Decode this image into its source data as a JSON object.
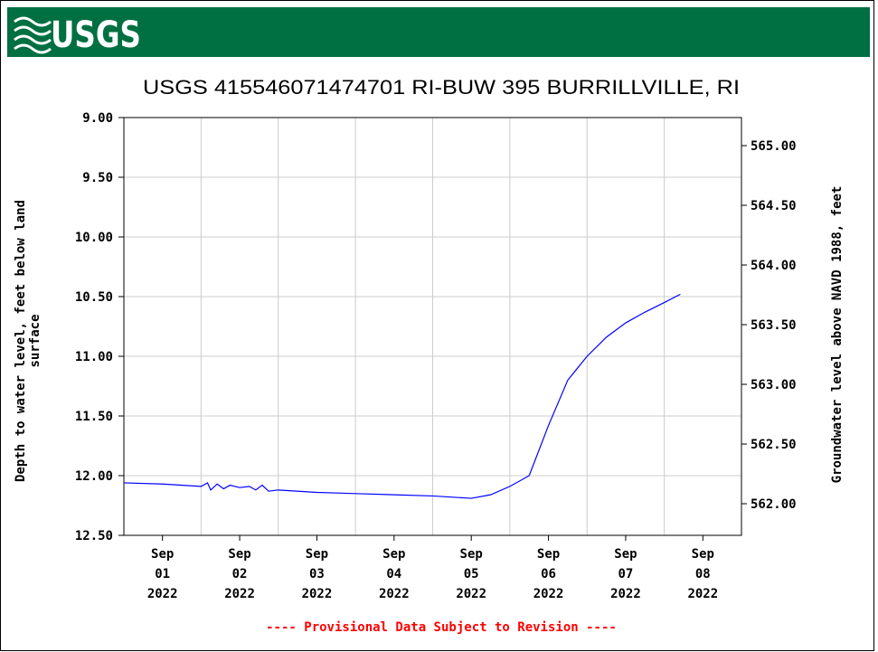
{
  "header": {
    "logo_text": "USGS"
  },
  "chart_data": {
    "type": "line",
    "title": "USGS 415546071474701 RI-BUW  395 BURRILLVILLE, RI",
    "ylabel": [
      "Depth to water level, feet below land",
      "surface"
    ],
    "y2label": "Groundwater level above NAVD 1988, feet",
    "footnote": "---- Provisional Data Subject to Revision ----",
    "x": [
      "2022-09-01T00",
      "2022-09-01T12",
      "2022-09-02T00",
      "2022-09-02T02",
      "2022-09-02T03",
      "2022-09-02T05",
      "2022-09-02T07",
      "2022-09-02T09",
      "2022-09-02T12",
      "2022-09-02T15",
      "2022-09-02T17",
      "2022-09-02T19",
      "2022-09-02T21",
      "2022-09-03T00",
      "2022-09-03T12",
      "2022-09-04T00",
      "2022-09-04T12",
      "2022-09-05T00",
      "2022-09-05T12",
      "2022-09-05T18",
      "2022-09-06T00",
      "2022-09-06T06",
      "2022-09-06T12",
      "2022-09-06T18",
      "2022-09-07T00",
      "2022-09-07T06",
      "2022-09-07T12",
      "2022-09-07T18",
      "2022-09-08T00",
      "2022-09-08T05"
    ],
    "series": [
      {
        "name": "Depth to water level",
        "color": "#0000ff",
        "values": [
          12.06,
          12.07,
          12.09,
          12.06,
          12.12,
          12.07,
          12.11,
          12.08,
          12.1,
          12.09,
          12.12,
          12.08,
          12.13,
          12.12,
          12.14,
          12.15,
          12.16,
          12.17,
          12.19,
          12.16,
          12.09,
          12.0,
          11.58,
          11.2,
          11.0,
          10.84,
          10.72,
          10.63,
          10.55,
          10.48
        ]
      }
    ],
    "xlim": [
      "2022-09-01T00",
      "2022-09-09T00"
    ],
    "xticks": [
      {
        "value": "2022-09-01T12",
        "label": [
          "Sep",
          "01",
          "2022"
        ]
      },
      {
        "value": "2022-09-02T12",
        "label": [
          "Sep",
          "02",
          "2022"
        ]
      },
      {
        "value": "2022-09-03T12",
        "label": [
          "Sep",
          "03",
          "2022"
        ]
      },
      {
        "value": "2022-09-04T12",
        "label": [
          "Sep",
          "04",
          "2022"
        ]
      },
      {
        "value": "2022-09-05T12",
        "label": [
          "Sep",
          "05",
          "2022"
        ]
      },
      {
        "value": "2022-09-06T12",
        "label": [
          "Sep",
          "06",
          "2022"
        ]
      },
      {
        "value": "2022-09-07T12",
        "label": [
          "Sep",
          "07",
          "2022"
        ]
      },
      {
        "value": "2022-09-08T12",
        "label": [
          "Sep",
          "08",
          "2022"
        ]
      }
    ],
    "xgrid": [
      "2022-09-02T00",
      "2022-09-03T00",
      "2022-09-04T00",
      "2022-09-05T00",
      "2022-09-06T00",
      "2022-09-07T00",
      "2022-09-08T00"
    ],
    "ylim": [
      12.5,
      9.0
    ],
    "y_inverted": true,
    "yticks": [
      {
        "value": 9.0,
        "label": "9.00"
      },
      {
        "value": 9.5,
        "label": "9.50"
      },
      {
        "value": 10.0,
        "label": "10.00"
      },
      {
        "value": 10.5,
        "label": "10.50"
      },
      {
        "value": 11.0,
        "label": "11.00"
      },
      {
        "value": 11.5,
        "label": "11.50"
      },
      {
        "value": 12.0,
        "label": "12.00"
      },
      {
        "value": 12.5,
        "label": "12.50"
      }
    ],
    "y2lim": [
      561.735,
      565.235
    ],
    "y2ticks": [
      {
        "value": 562,
        "label": "562.00"
      },
      {
        "value": 562.5,
        "label": "562.50"
      },
      {
        "value": 563,
        "label": "563.00"
      },
      {
        "value": 563.5,
        "label": "563.50"
      },
      {
        "value": 564,
        "label": "564.00"
      },
      {
        "value": 564.5,
        "label": "564.50"
      },
      {
        "value": 565,
        "label": "565.00"
      }
    ],
    "grid": true
  }
}
